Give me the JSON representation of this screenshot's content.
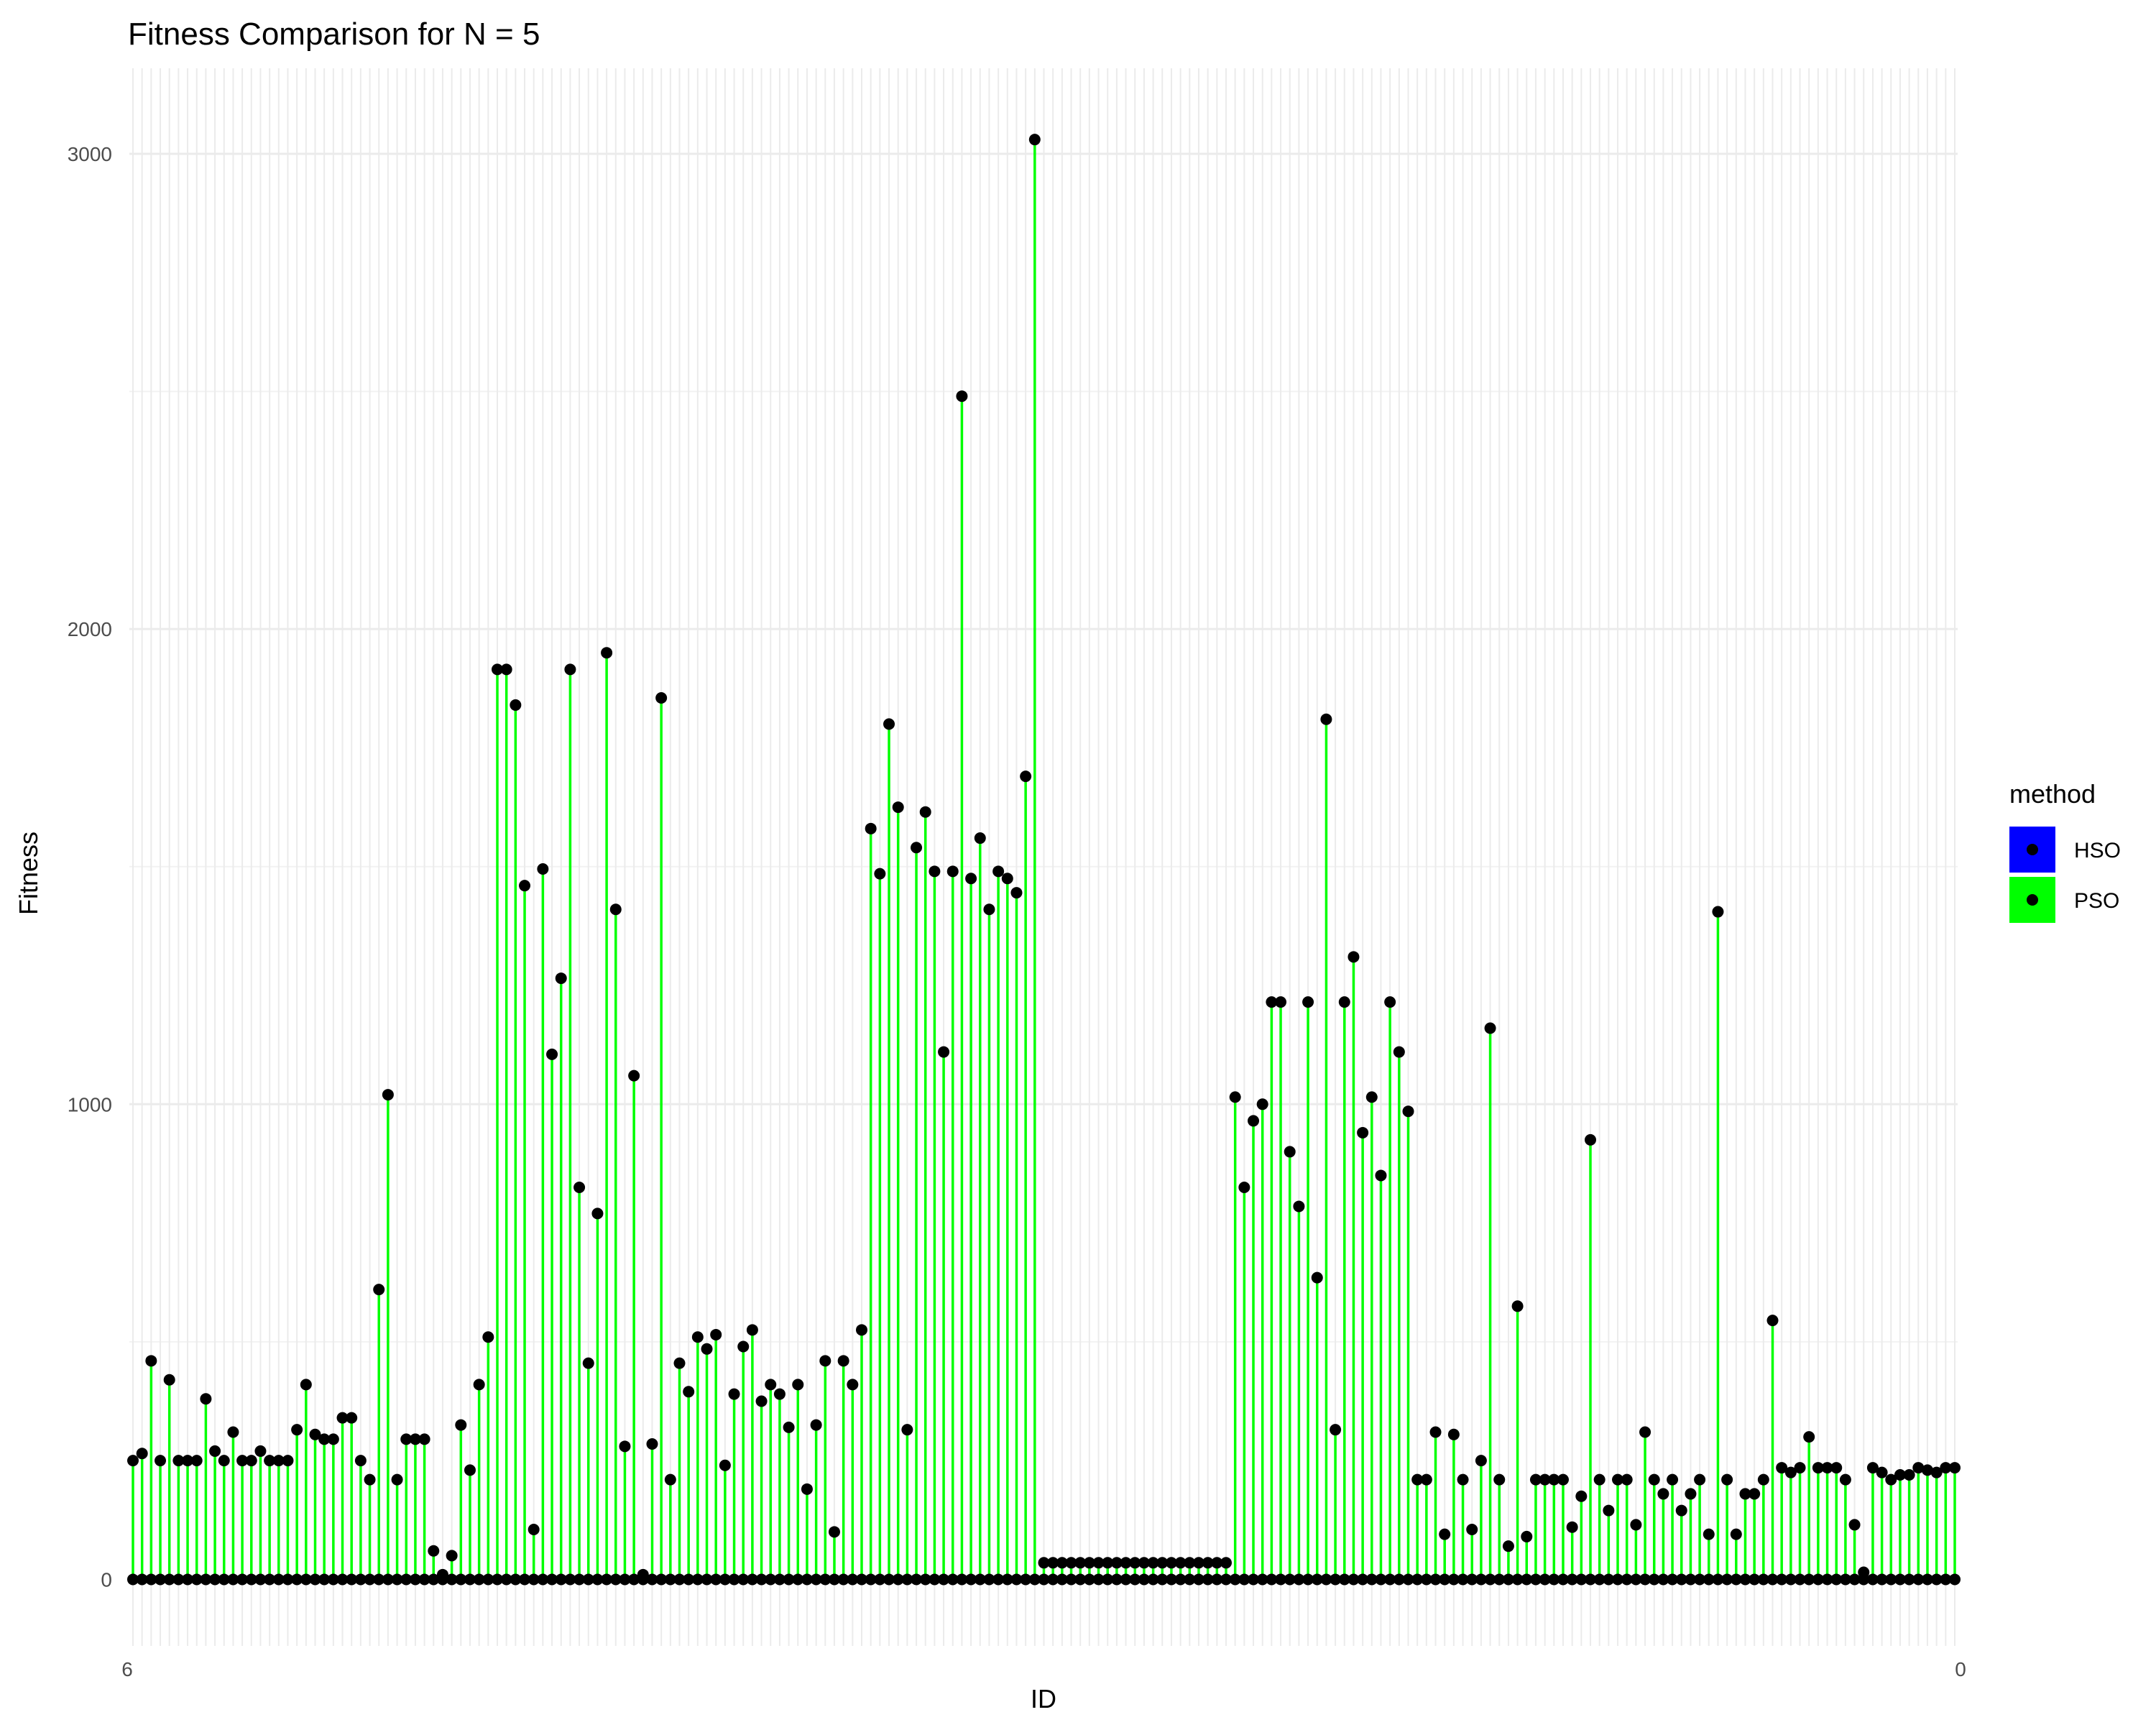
{
  "chart_data": {
    "type": "lollipop",
    "title": "Fitness Comparison for N = 5",
    "xlabel": "ID",
    "ylabel": "Fitness",
    "ylim": [
      -140,
      3180
    ],
    "yticks": [
      0,
      1000,
      2000,
      3000
    ],
    "xtick_labels_note": "ID tick labels are densely overlapping and illegible in the image",
    "xtick_labels": [
      "6",
      "0"
    ],
    "grid": true,
    "legend": {
      "title": "method",
      "position": "right",
      "entries": [
        {
          "name": "HSO",
          "color": "#0000ff"
        },
        {
          "name": "PSO",
          "color": "#00ff00"
        }
      ]
    },
    "segment_color": "#00ff00",
    "point_color": "#000000",
    "series": [
      {
        "name": "HSO",
        "values": [
          0,
          0,
          0,
          0,
          0,
          0,
          0,
          0,
          0,
          0,
          0,
          0,
          0,
          0,
          0,
          0,
          0,
          0,
          0,
          0,
          0,
          0,
          0,
          0,
          0,
          0,
          0,
          0,
          0,
          0,
          0,
          0,
          0,
          0,
          0,
          0,
          0,
          0,
          0,
          0,
          0,
          0,
          0,
          0,
          0,
          0,
          0,
          0,
          0,
          0,
          0,
          0,
          0,
          0,
          0,
          0,
          0,
          0,
          0,
          0,
          0,
          0,
          0,
          0,
          0,
          0,
          0,
          0,
          0,
          0,
          0,
          0,
          0,
          0,
          0,
          0,
          0,
          0,
          0,
          0,
          0,
          0,
          0,
          0,
          0,
          0,
          0,
          0,
          0,
          0,
          0,
          0,
          0,
          0,
          0,
          0,
          0,
          0,
          0,
          0,
          0,
          0,
          0,
          0,
          0,
          0,
          0,
          0,
          0,
          0,
          0,
          0,
          0,
          0,
          0,
          0,
          0,
          0,
          0,
          0,
          0,
          0,
          0,
          0,
          0,
          0,
          0,
          0,
          0,
          0,
          0,
          0,
          0,
          0,
          0,
          0,
          0,
          0,
          0,
          0,
          0,
          0,
          0,
          0,
          0,
          0,
          0,
          0,
          0,
          0,
          0,
          0,
          0,
          0,
          0,
          0,
          0,
          0,
          0,
          0,
          0,
          0,
          0,
          0,
          0,
          0,
          0,
          0,
          0,
          0,
          0,
          0,
          0,
          0,
          0,
          0,
          0,
          0,
          0,
          0,
          0,
          0,
          0,
          0,
          0,
          0,
          0,
          0,
          0,
          0,
          0,
          0,
          0,
          0,
          0,
          0,
          0,
          0,
          0,
          0,
          0
        ]
      },
      {
        "name": "PSO",
        "values": [
          250,
          265,
          460,
          250,
          420,
          250,
          250,
          250,
          380,
          270,
          250,
          310,
          250,
          250,
          270,
          250,
          250,
          250,
          315,
          410,
          305,
          295,
          295,
          340,
          340,
          250,
          210,
          610,
          1020,
          210,
          295,
          295,
          295,
          60,
          10,
          50,
          325,
          230,
          410,
          510,
          1915,
          1915,
          1840,
          1460,
          105,
          1495,
          1105,
          1265,
          1915,
          825,
          455,
          770,
          1950,
          1410,
          280,
          1060,
          10,
          285,
          1855,
          210,
          455,
          395,
          510,
          485,
          515,
          240,
          390,
          490,
          525,
          375,
          410,
          390,
          320,
          410,
          190,
          325,
          460,
          100,
          460,
          410,
          525,
          1580,
          1485,
          1800,
          1625,
          315,
          1540,
          1615,
          1490,
          1110,
          1490,
          2490,
          1475,
          1560,
          1410,
          1490,
          1475,
          1445,
          1690,
          3030,
          35,
          35,
          35,
          35,
          35,
          35,
          35,
          35,
          35,
          35,
          35,
          35,
          35,
          35,
          35,
          35,
          35,
          35,
          35,
          35,
          35,
          1015,
          825,
          965,
          1000,
          1215,
          1215,
          900,
          785,
          1215,
          635,
          1810,
          315,
          1215,
          1310,
          940,
          1015,
          850,
          1215,
          1110,
          985,
          210,
          210,
          310,
          95,
          305,
          210,
          105,
          250,
          1160,
          210,
          70,
          575,
          90,
          210,
          210,
          210,
          210,
          110,
          175,
          925,
          210,
          145,
          210,
          210,
          115,
          310,
          210,
          180,
          210,
          145,
          180,
          210,
          95,
          1405,
          210,
          95,
          180,
          180,
          210,
          545,
          235,
          225,
          235,
          300,
          235,
          235,
          235,
          210,
          115,
          15,
          235,
          225,
          210,
          220,
          220,
          235,
          230,
          225,
          235,
          235
        ]
      }
    ]
  }
}
